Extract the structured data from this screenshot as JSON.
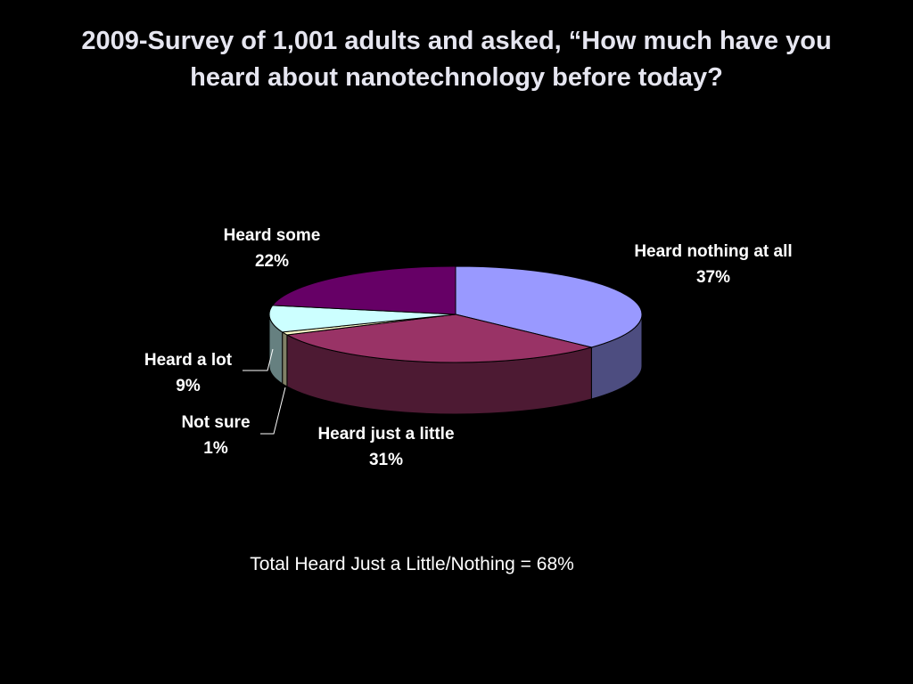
{
  "chart_data": {
    "type": "pie",
    "title": "2009-Survey of 1,001 adults and asked, “How much have you heard about nanotechnology before today?",
    "categories": [
      "Heard nothing at all",
      "Heard just a little",
      "Not sure",
      "Heard a lot",
      "Heard some"
    ],
    "values": [
      37,
      31,
      1,
      9,
      22
    ],
    "value_labels": [
      "37%",
      "31%",
      "1%",
      "9%",
      "22%"
    ],
    "colors": [
      "#9999ff",
      "#993366",
      "#ffffcc",
      "#ccffff",
      "#660066"
    ],
    "annotation": "Total Heard Just a Little/Nothing = 68%"
  }
}
